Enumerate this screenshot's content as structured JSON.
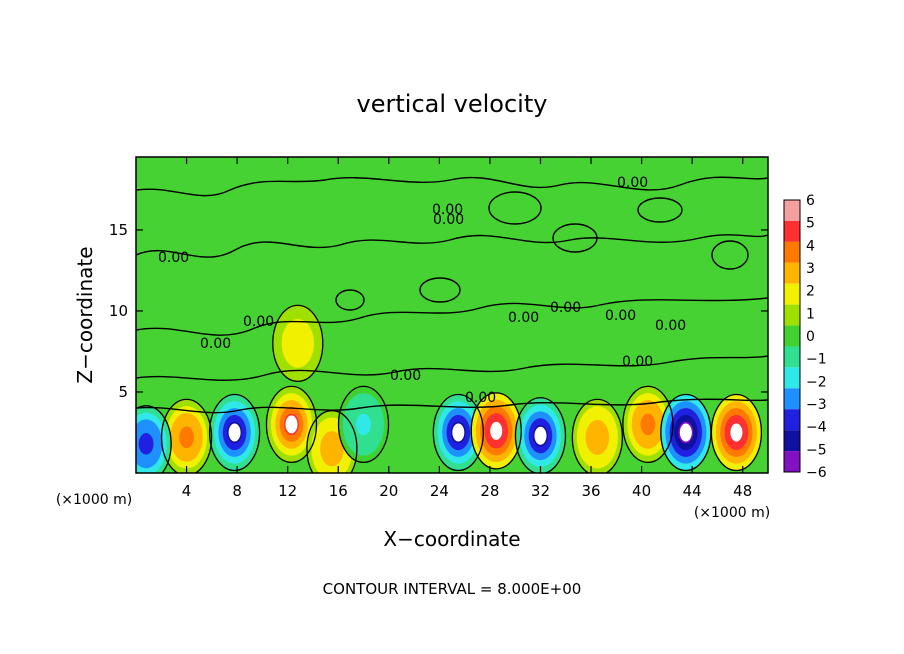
{
  "chart_data": {
    "type": "heatmap",
    "title": "vertical velocity",
    "xlabel": "X−coordinate",
    "ylabel": "Z−coordinate",
    "x_unit_left": "(×1000 m)",
    "x_unit_right": "(×1000 m)",
    "xlim": [
      0,
      50
    ],
    "ylim": [
      0,
      19.5
    ],
    "x_ticks": [
      4,
      8,
      12,
      16,
      20,
      24,
      28,
      32,
      36,
      40,
      44,
      48
    ],
    "y_ticks": [
      5,
      10,
      15
    ],
    "colorbar": {
      "range": [
        -6,
        6
      ],
      "labels": [
        "6",
        "5",
        "4",
        "3",
        "2",
        "1",
        "0",
        "−1",
        "−2",
        "−3",
        "−4",
        "−5",
        "−6"
      ],
      "colors": [
        "#f4a0a0",
        "#ff3030",
        "#ff7800",
        "#ffb400",
        "#f0f000",
        "#a0e000",
        "#40d030",
        "#30e090",
        "#30e8e8",
        "#1e90ff",
        "#2020e0",
        "#1010a0",
        "#8010c0"
      ]
    },
    "contour_label": "0.00",
    "contour_label_count": 13,
    "footer": "CONTOUR INTERVAL = 8.000E+00",
    "cells": [
      {
        "x": 4.0,
        "z": 2.2,
        "w": 4.0
      },
      {
        "x": 7.8,
        "z": 2.5,
        "w": -4.5
      },
      {
        "x": 12.3,
        "z": 3.0,
        "w": 5.0
      },
      {
        "x": 15.5,
        "z": 1.5,
        "w": 3.5
      },
      {
        "x": 18.0,
        "z": 3.0,
        "w": -1.5
      },
      {
        "x": 25.5,
        "z": 2.5,
        "w": -4.5
      },
      {
        "x": 28.5,
        "z": 2.6,
        "w": 5.5
      },
      {
        "x": 32.0,
        "z": 2.3,
        "w": -4.5
      },
      {
        "x": 36.5,
        "z": 2.2,
        "w": 3.5
      },
      {
        "x": 40.5,
        "z": 3.0,
        "w": 4.0
      },
      {
        "x": 43.5,
        "z": 2.5,
        "w": -5.5
      },
      {
        "x": 47.5,
        "z": 2.5,
        "w": 5.5
      },
      {
        "x": 0.8,
        "z": 1.8,
        "w": -4.0
      },
      {
        "x": 12.8,
        "z": 8.0,
        "w": 2.5
      }
    ]
  }
}
